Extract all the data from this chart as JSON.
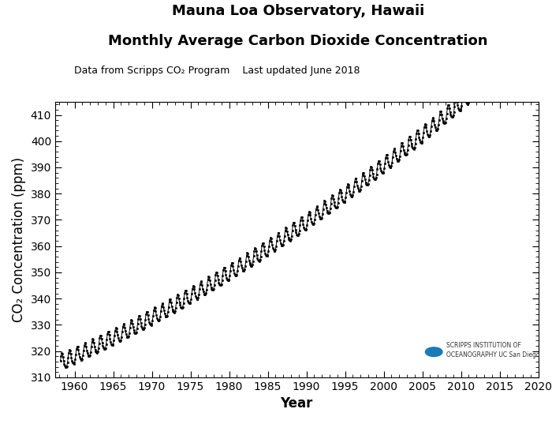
{
  "title_line1": "Mauna Loa Observatory, Hawaii",
  "title_line2": "Monthly Average Carbon Dioxide Concentration",
  "subtitle": "Data from Scripps CO₂ Program    Last updated June 2018",
  "xlabel": "Year",
  "ylabel": "CO₂ Concentration (ppm)",
  "xlim": [
    1957.5,
    2019.5
  ],
  "ylim": [
    310,
    415
  ],
  "xticks": [
    1960,
    1965,
    1970,
    1975,
    1980,
    1985,
    1990,
    1995,
    2000,
    2005,
    2010,
    2015,
    2020
  ],
  "yticks": [
    310,
    320,
    330,
    340,
    350,
    360,
    370,
    380,
    390,
    400,
    410
  ],
  "background_color": "#ffffff",
  "line_color": "#000000",
  "marker_color": "#000000",
  "title_fontsize": 13,
  "subtitle_fontsize": 9,
  "axis_label_fontsize": 12,
  "tick_fontsize": 10,
  "logo_circle_color": "#1a7ab5",
  "logo_text": "SCRIPPS INSTITUTION OF\nOCEANOGRAPHY UC San Diego"
}
